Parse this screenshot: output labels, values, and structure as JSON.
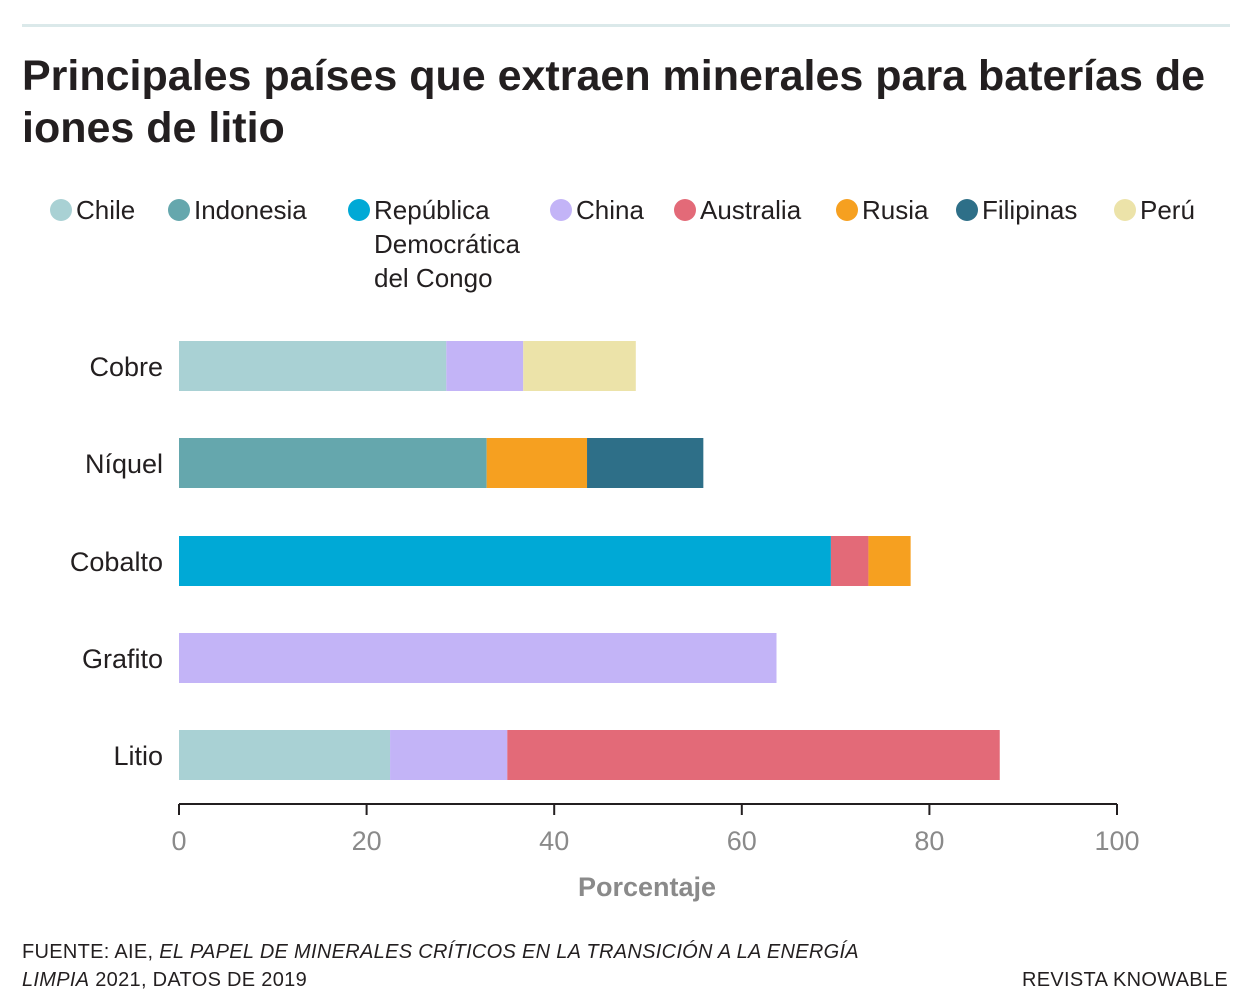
{
  "title": "Principales países que extraen minerales para baterías de iones de litio",
  "legend": [
    {
      "label": "Chile",
      "color": "#a9d1d4"
    },
    {
      "label": "Indonesia",
      "color": "#65a7ad"
    },
    {
      "label": "República\nDemocrática\ndel Congo",
      "color": "#00a9d6"
    },
    {
      "label": "China",
      "color": "#c3b4f7"
    },
    {
      "label": "Australia",
      "color": "#e36a78"
    },
    {
      "label": "Rusia",
      "color": "#f6a020"
    },
    {
      "label": "Filipinas",
      "color": "#2e6f88"
    },
    {
      "label": "Perú",
      "color": "#ece3a9"
    }
  ],
  "chart_data": {
    "type": "bar",
    "orientation": "horizontal",
    "stacked": true,
    "categories": [
      "Cobre",
      "Níquel",
      "Cobalto",
      "Grafito",
      "Litio"
    ],
    "series": [
      {
        "name": "Chile",
        "values": [
          28.5,
          0,
          0,
          0,
          22.5
        ]
      },
      {
        "name": "Indonesia",
        "values": [
          0,
          32.8,
          0,
          0,
          0
        ]
      },
      {
        "name": "República Democrática del Congo",
        "values": [
          0,
          0,
          69.5,
          0,
          0
        ]
      },
      {
        "name": "China",
        "values": [
          8.2,
          0,
          0,
          63.7,
          12.5
        ]
      },
      {
        "name": "Australia",
        "values": [
          0,
          0,
          4.0,
          0,
          52.5
        ]
      },
      {
        "name": "Rusia",
        "values": [
          0,
          10.7,
          4.5,
          0,
          0
        ]
      },
      {
        "name": "Filipinas",
        "values": [
          0,
          12.4,
          0,
          0,
          0
        ]
      },
      {
        "name": "Perú",
        "values": [
          12.0,
          0,
          0,
          0,
          0
        ]
      }
    ],
    "xlabel": "Porcentaje",
    "ylabel": "",
    "xlim": [
      0,
      100
    ],
    "xticks": [
      "0",
      "20",
      "40",
      "60",
      "80",
      "100"
    ],
    "grid": false,
    "legend_position": "top"
  },
  "footer": {
    "prefix": "FUENTE: AIE, ",
    "italic": "EL PAPEL DE MINERALES CRÍTICOS EN LA TRANSICIÓN A LA ENERGÍA LIMPIA",
    "suffix": " 2021, DATOS DE 2019"
  },
  "credit": "REVISTA KNOWABLE"
}
